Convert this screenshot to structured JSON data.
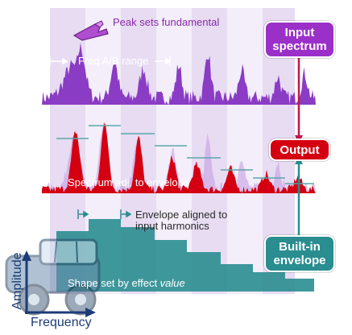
{
  "labels": {
    "peak": "Peak sets fundamental",
    "freq_range": "Freq A/B range",
    "spectrum_adj": "Spectrum adj. to envelope",
    "envelope_aligned_1": "Envelope aligned to",
    "envelope_aligned_2": "input harmonics",
    "shape_prefix": "Shape set by effect ",
    "shape_value": "value",
    "axis_y": "Amplitude",
    "axis_x": "Frequency"
  },
  "boxes": {
    "input_1": "Input",
    "input_2": "spectrum",
    "output": "Output",
    "builtin_1": "Built-in",
    "builtin_2": "envelope"
  },
  "colors": {
    "input": "#9b30c8",
    "input_spectrum": "#8a3cc4",
    "output": "#d40012",
    "builtin": "#2a8d90",
    "band": "#e7dcf2",
    "band_light": "#f3eef9"
  }
}
